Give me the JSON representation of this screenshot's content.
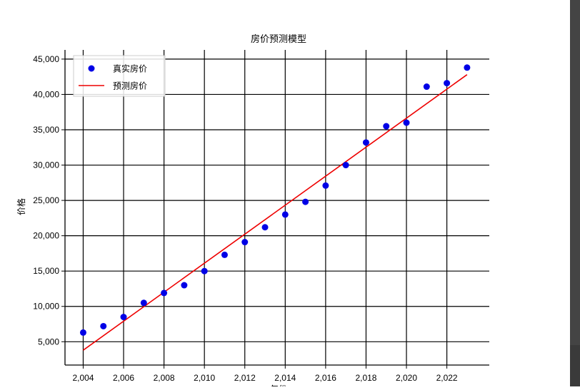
{
  "chart_data": {
    "type": "scatter",
    "title": "房价预测模型",
    "xlabel": "年份",
    "ylabel": "价格",
    "xlim": [
      2003.1,
      2024.1
    ],
    "ylim": [
      1700,
      46300
    ],
    "xticks": [
      2004,
      2006,
      2008,
      2010,
      2012,
      2014,
      2016,
      2018,
      2020,
      2022
    ],
    "yticks": [
      5000,
      10000,
      15000,
      20000,
      25000,
      30000,
      35000,
      40000,
      45000
    ],
    "grid": true,
    "legend_position": "top-left",
    "colors": {
      "actual": "#0000e6",
      "predicted": "#ee0000"
    },
    "series": [
      {
        "name": "真实房价",
        "kind": "scatter",
        "x": [
          2004,
          2005,
          2006,
          2007,
          2008,
          2009,
          2010,
          2011,
          2012,
          2013,
          2014,
          2015,
          2016,
          2017,
          2018,
          2019,
          2020,
          2021,
          2022,
          2023
        ],
        "y": [
          6300,
          7200,
          8500,
          10500,
          11900,
          13000,
          15000,
          17300,
          19100,
          21200,
          23000,
          24800,
          27100,
          30000,
          33200,
          35500,
          36000,
          41100,
          41600,
          43800
        ]
      },
      {
        "name": "预测房价",
        "kind": "line",
        "x": [
          2004,
          2023
        ],
        "y": [
          3800,
          42800
        ]
      }
    ]
  }
}
